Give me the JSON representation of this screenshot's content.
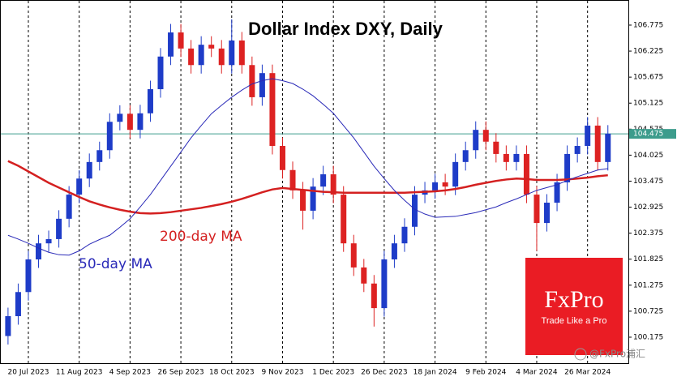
{
  "chart_data": {
    "type": "candlestick",
    "title": "Dollar Index DXY, Daily",
    "categories": [
      null,
      null,
      "20 Jul 2023",
      null,
      null,
      null,
      null,
      "11 Aug 2023",
      null,
      null,
      null,
      null,
      "4 Sep 2023",
      null,
      null,
      null,
      null,
      "26 Sep 2023",
      null,
      null,
      null,
      null,
      "18 Oct 2023",
      null,
      null,
      null,
      null,
      "9 Nov 2023",
      null,
      null,
      null,
      null,
      "1 Dec 2023",
      null,
      null,
      null,
      null,
      "26 Dec 2023",
      null,
      null,
      null,
      null,
      "18 Jan 2024",
      null,
      null,
      null,
      null,
      "9 Feb 2024",
      null,
      null,
      null,
      null,
      "4 Mar 2024",
      null,
      null,
      null,
      null,
      "26 Mar 2024",
      null,
      null
    ],
    "open": [
      100.2,
      100.62,
      101.13,
      101.82,
      102.16,
      102.25,
      102.68,
      103.19,
      103.53,
      103.88,
      104.13,
      104.73,
      104.9,
      104.56,
      104.91,
      105.42,
      106.11,
      106.62,
      106.28,
      105.93,
      106.36,
      106.28,
      105.93,
      106.45,
      105.93,
      105.25,
      105.76,
      104.22,
      103.71,
      103.28,
      102.85,
      103.36,
      103.62,
      103.19,
      102.16,
      101.65,
      101.31,
      100.79,
      101.82,
      102.16,
      102.51,
      103.19,
      103.28,
      103.45,
      103.36,
      103.88,
      104.13,
      104.56,
      104.31,
      104.05,
      103.88,
      104.05,
      103.19,
      102.59,
      103.02,
      103.45,
      104.05,
      104.22,
      104.65,
      103.88
    ],
    "high": [
      100.8,
      101.31,
      102.0,
      102.34,
      102.43,
      102.86,
      103.37,
      103.71,
      104.06,
      104.31,
      104.91,
      105.08,
      105.08,
      105.09,
      105.6,
      106.29,
      106.8,
      106.8,
      106.46,
      106.54,
      106.54,
      106.46,
      106.9,
      106.63,
      106.11,
      105.94,
      105.94,
      104.4,
      103.89,
      103.46,
      103.54,
      103.8,
      103.8,
      103.37,
      102.34,
      101.83,
      101.49,
      102.0,
      102.34,
      102.69,
      103.37,
      103.46,
      103.63,
      103.63,
      104.06,
      104.31,
      104.74,
      104.74,
      104.49,
      104.23,
      104.23,
      104.23,
      103.37,
      103.2,
      103.63,
      104.23,
      104.4,
      104.83,
      104.83,
      104.66
    ],
    "low": [
      100.02,
      100.44,
      100.95,
      101.64,
      101.98,
      102.07,
      102.5,
      103.01,
      103.35,
      103.7,
      103.95,
      104.55,
      104.38,
      104.38,
      104.73,
      105.24,
      105.93,
      106.1,
      105.75,
      105.75,
      106.1,
      105.75,
      105.75,
      105.75,
      105.07,
      105.07,
      104.04,
      103.53,
      103.1,
      102.45,
      102.67,
      103.18,
      103.01,
      101.98,
      101.47,
      101.13,
      100.4,
      100.61,
      101.64,
      101.98,
      102.33,
      103.01,
      103.1,
      103.18,
      103.18,
      103.7,
      103.95,
      104.13,
      103.87,
      103.7,
      103.7,
      103.01,
      102.0,
      102.41,
      102.84,
      103.27,
      103.87,
      104.04,
      103.7,
      103.7
    ],
    "close": [
      100.62,
      101.13,
      101.82,
      102.16,
      102.25,
      102.68,
      103.19,
      103.53,
      103.88,
      104.13,
      104.73,
      104.9,
      104.56,
      104.91,
      105.42,
      106.11,
      106.62,
      106.28,
      105.93,
      106.36,
      106.28,
      105.93,
      106.45,
      105.93,
      105.25,
      105.76,
      104.22,
      103.71,
      103.28,
      102.85,
      103.36,
      103.62,
      103.19,
      102.16,
      101.65,
      101.31,
      100.79,
      101.82,
      102.16,
      102.51,
      103.19,
      103.28,
      103.45,
      103.36,
      103.88,
      104.13,
      104.56,
      104.31,
      104.05,
      103.88,
      104.05,
      103.19,
      102.59,
      103.02,
      103.45,
      104.05,
      104.22,
      104.65,
      103.88,
      104.48
    ],
    "up_color": "#1e3cc8",
    "down_color": "#dd2222",
    "lines": [
      {
        "name": "200-day MA",
        "color": "#d42020",
        "width": 2.5,
        "values": [
          103.9,
          103.8,
          103.68,
          103.56,
          103.44,
          103.34,
          103.24,
          103.14,
          103.05,
          102.98,
          102.92,
          102.87,
          102.83,
          102.8,
          102.79,
          102.8,
          102.82,
          102.85,
          102.88,
          102.91,
          102.95,
          102.99,
          103.04,
          103.1,
          103.17,
          103.24,
          103.3,
          103.33,
          103.31,
          103.29,
          103.27,
          103.25,
          103.24,
          103.23,
          103.23,
          103.23,
          103.23,
          103.23,
          103.23,
          103.23,
          103.24,
          103.25,
          103.26,
          103.28,
          103.31,
          103.35,
          103.4,
          103.44,
          103.48,
          103.51,
          103.53,
          103.52,
          103.5,
          103.5,
          103.5,
          103.51,
          103.53,
          103.55,
          103.58,
          103.6
        ]
      },
      {
        "name": "50-day MA",
        "color": "#2a2ab8",
        "width": 1,
        "values": [
          102.33,
          102.25,
          102.16,
          102.06,
          101.97,
          101.92,
          101.91,
          102.0,
          102.14,
          102.24,
          102.33,
          102.5,
          102.68,
          102.93,
          103.19,
          103.49,
          103.79,
          104.09,
          104.39,
          104.65,
          104.9,
          105.08,
          105.25,
          105.4,
          105.53,
          105.6,
          105.64,
          105.6,
          105.54,
          105.42,
          105.28,
          105.1,
          104.91,
          104.65,
          104.39,
          104.09,
          103.79,
          103.53,
          103.28,
          103.07,
          102.88,
          102.78,
          102.71,
          102.72,
          102.73,
          102.77,
          102.81,
          102.87,
          102.93,
          103.02,
          103.1,
          103.19,
          103.28,
          103.34,
          103.4,
          103.49,
          103.57,
          103.64,
          103.71,
          103.74
        ]
      }
    ],
    "ylim": [
      99.626,
      107.306
    ],
    "yticks": [
      100.175,
      100.725,
      101.275,
      101.825,
      102.375,
      102.925,
      103.475,
      104.025,
      104.575,
      105.125,
      105.675,
      106.225,
      106.775
    ],
    "price_line": {
      "value": 104.475,
      "color": "#3c9c8c"
    }
  },
  "logo": {
    "name": "FxPro",
    "tagline": "Trade Like a Pro"
  },
  "watermark": "@FxPro浦汇"
}
